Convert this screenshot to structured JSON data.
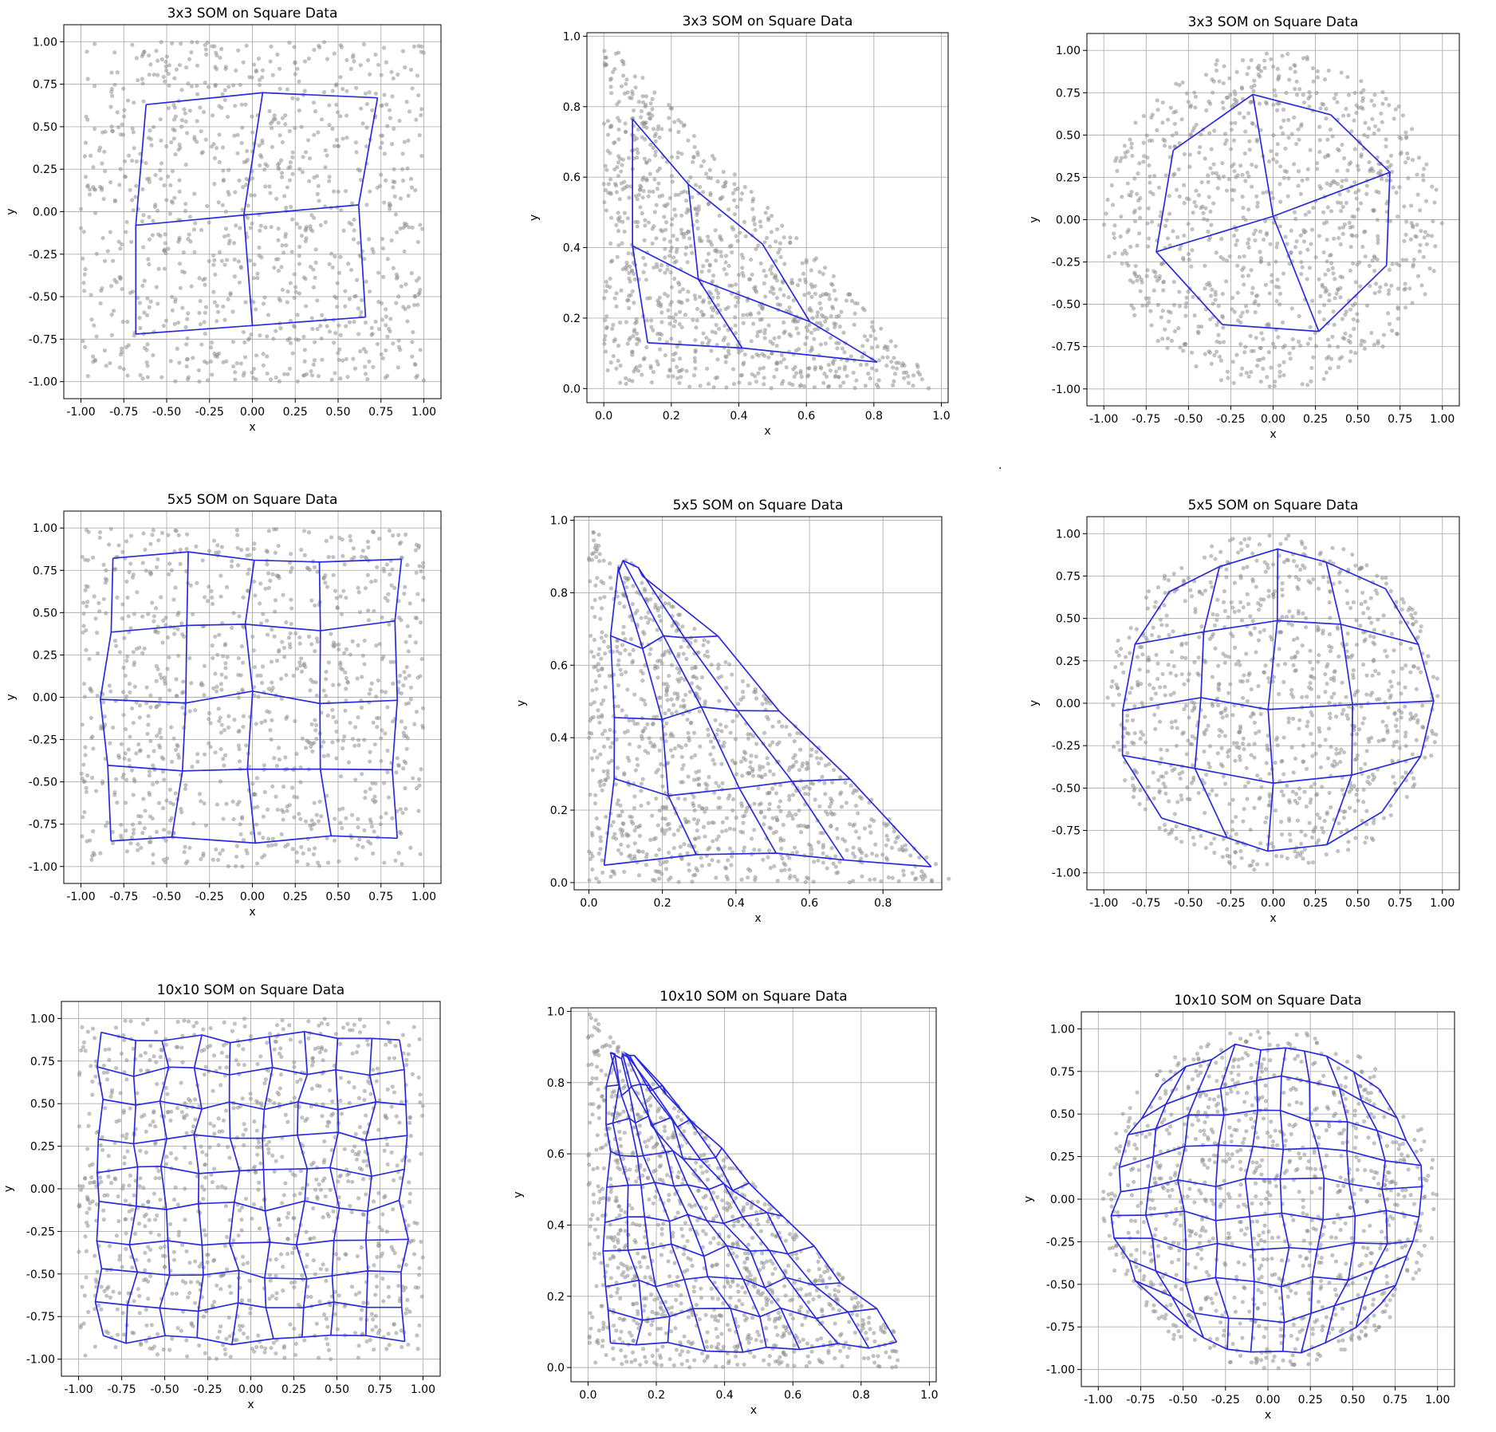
{
  "figure": {
    "stray_mark": "."
  },
  "chart_data": [
    {
      "type": "scatter",
      "title": "3x3 SOM on Square Data",
      "xlabel": "x",
      "ylabel": "y",
      "xlim": [
        -1.1,
        1.1
      ],
      "ylim": [
        -1.1,
        1.1
      ],
      "xticks": [
        "-1.00",
        "-0.75",
        "-0.50",
        "-0.25",
        "0.00",
        "0.25",
        "0.50",
        "0.75",
        "1.00"
      ],
      "yticks": [
        "-1.00",
        "-0.75",
        "-0.50",
        "-0.25",
        "0.00",
        "0.25",
        "0.50",
        "0.75",
        "1.00"
      ],
      "grid": true,
      "dataset": "square",
      "som_size": 3,
      "nodes": [
        [
          [
            -0.68,
            -0.72
          ],
          [
            0.0,
            -0.67
          ],
          [
            0.66,
            -0.62
          ]
        ],
        [
          [
            -0.68,
            -0.08
          ],
          [
            -0.05,
            -0.02
          ],
          [
            0.62,
            0.04
          ]
        ],
        [
          [
            -0.62,
            0.63
          ],
          [
            0.06,
            0.7
          ],
          [
            0.73,
            0.67
          ]
        ]
      ]
    },
    {
      "type": "scatter",
      "title": "3x3 SOM on Square Data",
      "xlabel": "x",
      "ylabel": "y",
      "xlim": [
        -0.05,
        1.02
      ],
      "ylim": [
        -0.04,
        1.01
      ],
      "xticks": [
        "0.0",
        "0.2",
        "0.4",
        "0.6",
        "0.8",
        "1.0"
      ],
      "yticks": [
        "0.0",
        "0.2",
        "0.4",
        "0.6",
        "0.8",
        "1.0"
      ],
      "grid": true,
      "dataset": "triangle",
      "som_size": 3,
      "nodes": [
        [
          [
            0.13,
            0.13
          ],
          [
            0.41,
            0.115
          ],
          [
            0.81,
            0.075
          ]
        ],
        [
          [
            0.085,
            0.405
          ],
          [
            0.28,
            0.31
          ],
          [
            0.61,
            0.19
          ]
        ],
        [
          [
            0.085,
            0.765
          ],
          [
            0.25,
            0.58
          ],
          [
            0.47,
            0.41
          ]
        ]
      ]
    },
    {
      "type": "scatter",
      "title": "3x3 SOM on Square Data",
      "xlabel": "x",
      "ylabel": "y",
      "xlim": [
        -1.1,
        1.1
      ],
      "ylim": [
        -1.1,
        1.1
      ],
      "xticks": [
        "-1.00",
        "-0.75",
        "-0.50",
        "-0.25",
        "0.00",
        "0.25",
        "0.50",
        "0.75",
        "1.00"
      ],
      "yticks": [
        "-1.00",
        "-0.75",
        "-0.50",
        "-0.25",
        "0.00",
        "0.25",
        "0.50",
        "0.75",
        "1.00"
      ],
      "grid": true,
      "dataset": "circle",
      "som_size": 3,
      "nodes": [
        [
          [
            -0.3,
            -0.62
          ],
          [
            0.27,
            -0.66
          ],
          [
            0.67,
            -0.27
          ]
        ],
        [
          [
            -0.69,
            -0.19
          ],
          [
            0.0,
            0.02
          ],
          [
            0.69,
            0.28
          ]
        ],
        [
          [
            -0.59,
            0.41
          ],
          [
            -0.12,
            0.74
          ],
          [
            0.34,
            0.62
          ]
        ]
      ]
    },
    {
      "type": "scatter",
      "title": "5x5 SOM on Square Data",
      "xlabel": "x",
      "ylabel": "y",
      "xlim": [
        -1.1,
        1.1
      ],
      "ylim": [
        -1.1,
        1.1
      ],
      "xticks": [
        "-1.00",
        "-0.75",
        "-0.50",
        "-0.25",
        "0.00",
        "0.25",
        "0.50",
        "0.75",
        "1.00"
      ],
      "yticks": [
        "-1.00",
        "-0.75",
        "-0.50",
        "-0.25",
        "0.00",
        "0.25",
        "0.50",
        "0.75",
        "1.00"
      ],
      "grid": true,
      "dataset": "square",
      "som_size": 5
    },
    {
      "type": "scatter",
      "title": "5x5 SOM on Square Data",
      "xlabel": "x",
      "ylabel": "y",
      "xlim": [
        -0.04,
        0.96
      ],
      "ylim": [
        -0.02,
        1.01
      ],
      "xticks": [
        "0.0",
        "0.2",
        "0.4",
        "0.6",
        "0.8"
      ],
      "yticks": [
        "0.0",
        "0.2",
        "0.4",
        "0.6",
        "0.8",
        "1.0"
      ],
      "grid": true,
      "dataset": "triangle",
      "som_size": 5
    },
    {
      "type": "scatter",
      "title": "5x5 SOM on Square Data",
      "xlabel": "x",
      "ylabel": "y",
      "xlim": [
        -1.1,
        1.1
      ],
      "ylim": [
        -1.1,
        1.1
      ],
      "xticks": [
        "-1.00",
        "-0.75",
        "-0.50",
        "-0.25",
        "0.00",
        "0.25",
        "0.50",
        "0.75",
        "1.00"
      ],
      "yticks": [
        "-1.00",
        "-0.75",
        "-0.50",
        "-0.25",
        "0.00",
        "0.25",
        "0.50",
        "0.75",
        "1.00"
      ],
      "grid": true,
      "dataset": "circle",
      "som_size": 5
    },
    {
      "type": "scatter",
      "title": "10x10 SOM on Square Data",
      "xlabel": "x",
      "ylabel": "y",
      "xlim": [
        -1.1,
        1.1
      ],
      "ylim": [
        -1.1,
        1.1
      ],
      "xticks": [
        "-1.00",
        "-0.75",
        "-0.50",
        "-0.25",
        "0.00",
        "0.25",
        "0.50",
        "0.75",
        "1.00"
      ],
      "yticks": [
        "-1.00",
        "-0.75",
        "-0.50",
        "-0.25",
        "0.00",
        "0.25",
        "0.50",
        "0.75",
        "1.00"
      ],
      "grid": true,
      "dataset": "square",
      "som_size": 10
    },
    {
      "type": "scatter",
      "title": "10x10 SOM on Square Data",
      "xlabel": "x",
      "ylabel": "y",
      "xlim": [
        -0.05,
        1.02
      ],
      "ylim": [
        -0.04,
        1.01
      ],
      "xticks": [
        "0.0",
        "0.2",
        "0.4",
        "0.6",
        "0.8",
        "1.0"
      ],
      "yticks": [
        "0.0",
        "0.2",
        "0.4",
        "0.6",
        "0.8",
        "1.0"
      ],
      "grid": true,
      "dataset": "triangle",
      "som_size": 10
    },
    {
      "type": "scatter",
      "title": "10x10 SOM on Square Data",
      "xlabel": "x",
      "ylabel": "y",
      "xlim": [
        -1.1,
        1.1
      ],
      "ylim": [
        -1.1,
        1.1
      ],
      "xticks": [
        "-1.00",
        "-0.75",
        "-0.50",
        "-0.25",
        "0.00",
        "0.25",
        "0.50",
        "0.75",
        "1.00"
      ],
      "yticks": [
        "-1.00",
        "-0.75",
        "-0.50",
        "-0.25",
        "0.00",
        "0.25",
        "0.50",
        "0.75",
        "1.00"
      ],
      "grid": true,
      "dataset": "circle",
      "som_size": 10
    }
  ]
}
